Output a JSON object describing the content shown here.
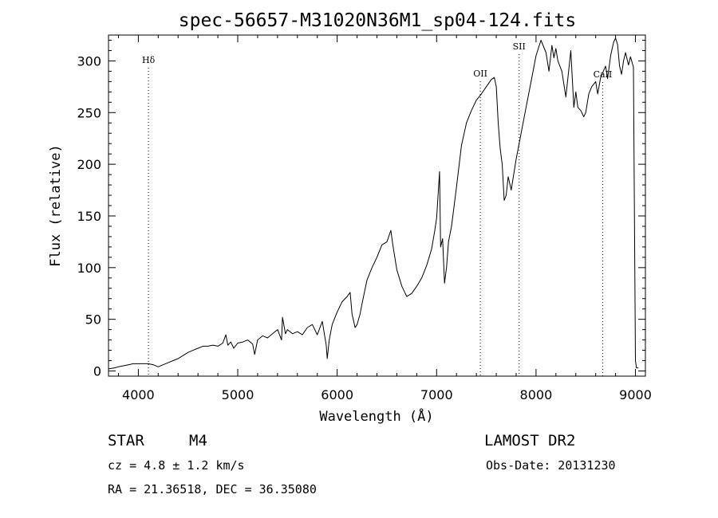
{
  "chart_data": {
    "type": "line",
    "title": "spec-56657-M31020N36M1_sp04-124.fits",
    "xlabel": "Wavelength (Å)",
    "ylabel": "Flux (relative)",
    "xlim": [
      3700,
      9100
    ],
    "ylim": [
      -5,
      325
    ],
    "x_ticks": [
      4000,
      5000,
      6000,
      7000,
      8000,
      9000
    ],
    "y_ticks": [
      0,
      50,
      100,
      150,
      200,
      250,
      300
    ],
    "grid": false,
    "series": [
      {
        "x": [
          3700,
          3760,
          3800,
          3850,
          3900,
          3950,
          4000,
          4050,
          4100,
          4150,
          4200,
          4250,
          4300,
          4350,
          4400,
          4450,
          4500,
          4550,
          4600,
          4650,
          4700,
          4750,
          4800,
          4850,
          4880,
          4900,
          4930,
          4960,
          5000,
          5050,
          5100,
          5150,
          5170,
          5200,
          5250,
          5300,
          5350,
          5400,
          5440,
          5450,
          5480,
          5500,
          5550,
          5600,
          5650,
          5700,
          5750,
          5800,
          5850,
          5890,
          5900,
          5920,
          5950,
          6000,
          6050,
          6100,
          6130,
          6150,
          6180,
          6200,
          6230,
          6250,
          6300,
          6350,
          6400,
          6450,
          6500,
          6540,
          6560,
          6600,
          6650,
          6700,
          6750,
          6800,
          6850,
          6900,
          6950,
          6980,
          7000,
          7030,
          7040,
          7060,
          7080,
          7100,
          7120,
          7150,
          7200,
          7250,
          7300,
          7350,
          7400,
          7450,
          7500,
          7550,
          7580,
          7600,
          7620,
          7640,
          7660,
          7680,
          7700,
          7720,
          7750,
          7800,
          7850,
          7900,
          7950,
          8000,
          8050,
          8100,
          8130,
          8160,
          8180,
          8200,
          8220,
          8240,
          8260,
          8300,
          8350,
          8380,
          8400,
          8420,
          8450,
          8480,
          8500,
          8530,
          8560,
          8600,
          8620,
          8650,
          8700,
          8720,
          8750,
          8780,
          8800,
          8820,
          8840,
          8860,
          8880,
          8900,
          8930,
          8950,
          8980,
          9000,
          9010,
          9030
        ],
        "values": [
          2,
          3,
          4,
          5,
          6,
          7,
          7,
          7,
          7,
          6,
          4,
          6,
          8,
          10,
          12,
          15,
          18,
          20,
          22,
          24,
          24,
          25,
          24,
          27,
          35,
          25,
          28,
          22,
          27,
          28,
          30,
          26,
          16,
          30,
          34,
          32,
          36,
          40,
          30,
          52,
          36,
          40,
          36,
          38,
          35,
          42,
          45,
          35,
          48,
          25,
          12,
          30,
          45,
          57,
          67,
          72,
          76,
          55,
          42,
          45,
          55,
          65,
          88,
          100,
          110,
          122,
          125,
          136,
          122,
          98,
          82,
          72,
          75,
          82,
          90,
          102,
          118,
          135,
          148,
          193,
          120,
          128,
          85,
          100,
          125,
          140,
          178,
          218,
          240,
          252,
          262,
          268,
          275,
          282,
          284,
          275,
          240,
          215,
          200,
          165,
          170,
          188,
          175,
          205,
          230,
          255,
          280,
          305,
          320,
          308,
          290,
          315,
          303,
          312,
          300,
          295,
          290,
          265,
          310,
          255,
          270,
          255,
          252,
          246,
          250,
          268,
          275,
          280,
          268,
          284,
          295,
          283,
          305,
          318,
          322,
          316,
          295,
          287,
          300,
          308,
          296,
          304,
          294,
          10,
          3,
          3
        ]
      }
    ],
    "annotations": [
      {
        "label": "Hδ",
        "x": 4102
      },
      {
        "label": "OII",
        "x": 7440
      },
      {
        "label": "SII",
        "x": 7830
      },
      {
        "label": "CaII",
        "x": 8670
      }
    ]
  },
  "footer": {
    "object_type": "STAR",
    "subclass": "M4",
    "survey": "LAMOST DR2",
    "cz": "cz = 4.8 ± 1.2 km/s",
    "obs_date": "Obs-Date: 20131230",
    "coords": "RA =  21.36518, DEC =  36.35080"
  }
}
